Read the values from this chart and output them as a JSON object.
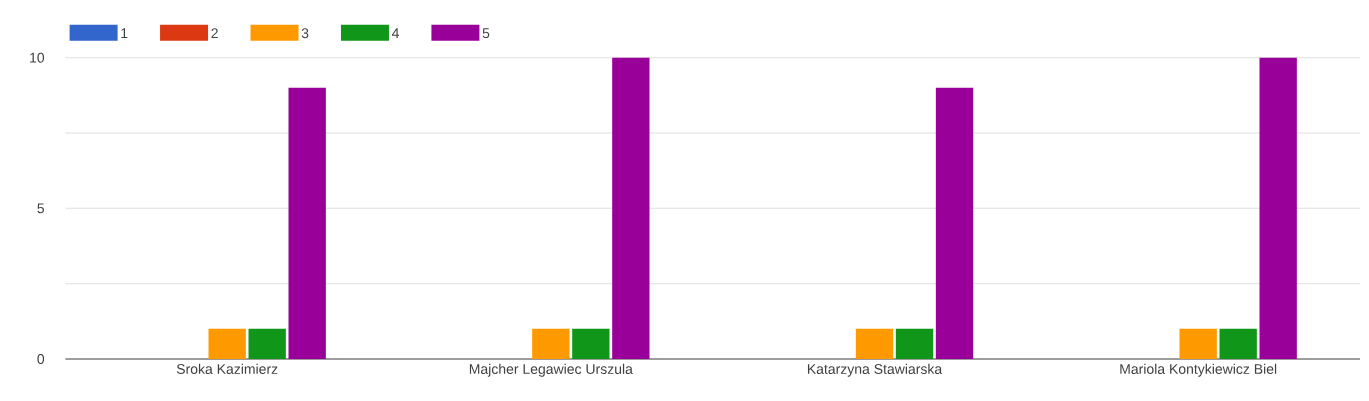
{
  "chart_data": {
    "type": "bar",
    "categories": [
      "Sroka Kazimierz",
      "Majcher Legawiec Urszula",
      "Katarzyna Stawiarska",
      "Mariola Kontykiewicz Biel"
    ],
    "series": [
      {
        "name": "1",
        "color": "#3366cc",
        "values": [
          0,
          0,
          0,
          0
        ]
      },
      {
        "name": "2",
        "color": "#dc3912",
        "values": [
          0,
          0,
          0,
          0
        ]
      },
      {
        "name": "3",
        "color": "#ff9900",
        "values": [
          1,
          1,
          1,
          1
        ]
      },
      {
        "name": "4",
        "color": "#109618",
        "values": [
          1,
          1,
          1,
          1
        ]
      },
      {
        "name": "5",
        "color": "#990099",
        "values": [
          9,
          10,
          9,
          10
        ]
      }
    ],
    "ylim": [
      0,
      10
    ],
    "yticks": [
      0,
      {
        "value": 2.5,
        "label": null
      },
      5,
      {
        "value": 7.5,
        "label": null
      },
      10
    ],
    "grid": "y",
    "legend": "top left"
  }
}
